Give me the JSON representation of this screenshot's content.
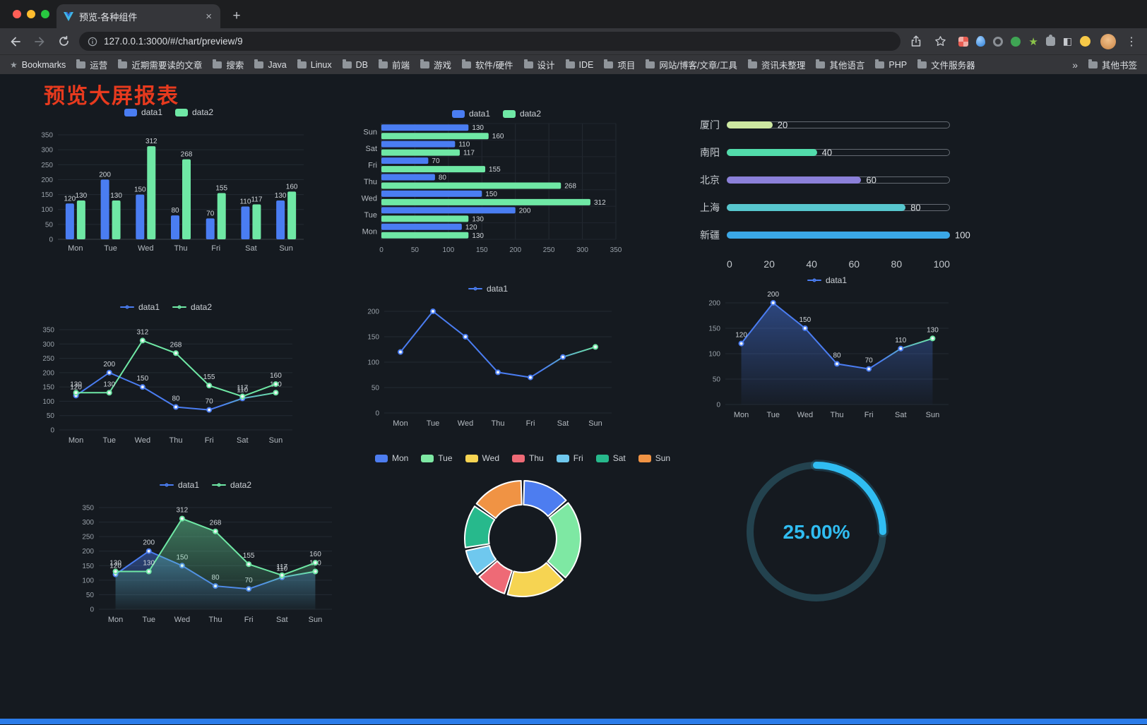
{
  "browser": {
    "tab_title": "预览-各种组件",
    "url": "127.0.0.1:3000/#/chart/preview/9",
    "bookmarks": [
      {
        "label": "Bookmarks",
        "icon": "star"
      },
      {
        "label": "运营",
        "icon": "folder"
      },
      {
        "label": "近期需要读的文章",
        "icon": "folder"
      },
      {
        "label": "搜索",
        "icon": "folder"
      },
      {
        "label": "Java",
        "icon": "folder"
      },
      {
        "label": "Linux",
        "icon": "folder"
      },
      {
        "label": "DB",
        "icon": "folder"
      },
      {
        "label": "前端",
        "icon": "folder"
      },
      {
        "label": "游戏",
        "icon": "folder"
      },
      {
        "label": "软件/硬件",
        "icon": "folder"
      },
      {
        "label": "设计",
        "icon": "folder"
      },
      {
        "label": "IDE",
        "icon": "folder"
      },
      {
        "label": "项目",
        "icon": "folder"
      },
      {
        "label": "网站/博客/文章/工具",
        "icon": "folder"
      },
      {
        "label": "资讯未整理",
        "icon": "folder"
      },
      {
        "label": "其他语言",
        "icon": "folder"
      },
      {
        "label": "PHP",
        "icon": "folder"
      },
      {
        "label": "文件服务器",
        "icon": "folder"
      },
      {
        "label": "»",
        "icon": "chevron"
      },
      {
        "label": "其他书签",
        "icon": "folder"
      }
    ]
  },
  "page": {
    "title": "预览大屏报表",
    "title_color": "#e73a1e",
    "background": "#151a20",
    "accent_blue": "#4a7df2",
    "accent_green": "#6fe8a5",
    "footer_bar_color": "#2b7ce9"
  },
  "chart_data": [
    {
      "id": "bar-grouped",
      "type": "bar",
      "legend_type": "rect",
      "categories": [
        "Mon",
        "Tue",
        "Wed",
        "Thu",
        "Fri",
        "Sat",
        "Sun"
      ],
      "series": [
        {
          "name": "data1",
          "color": "#4a7df2",
          "values": [
            120,
            200,
            150,
            80,
            70,
            110,
            130
          ]
        },
        {
          "name": "data2",
          "color": "#6fe8a5",
          "values": [
            130,
            130,
            312,
            268,
            155,
            117,
            160
          ]
        }
      ],
      "ylim": [
        0,
        350
      ],
      "ytick": 50,
      "show_labels": true
    },
    {
      "id": "bar-horizontal",
      "type": "hbar",
      "legend_type": "rect",
      "categories": [
        "Sun",
        "Sat",
        "Fri",
        "Thu",
        "Wed",
        "Tue",
        "Mon"
      ],
      "series": [
        {
          "name": "data1",
          "color": "#4a7df2",
          "values": [
            130,
            110,
            70,
            80,
            150,
            200,
            120
          ]
        },
        {
          "name": "data2",
          "color": "#6fe8a5",
          "values": [
            160,
            117,
            155,
            268,
            312,
            130,
            130
          ]
        }
      ],
      "xlim": [
        0,
        350
      ],
      "xtick": 50,
      "show_labels": true
    },
    {
      "id": "progress-bars",
      "type": "progress",
      "max": 100,
      "rows": [
        {
          "label": "厦门",
          "value": 20,
          "color": "#cde8a1"
        },
        {
          "label": "南阳",
          "value": 40,
          "color": "#52dcab"
        },
        {
          "label": "北京",
          "value": 60,
          "color": "#8b80d9"
        },
        {
          "label": "上海",
          "value": 80,
          "color": "#57c7ce"
        },
        {
          "label": "新疆",
          "value": 100,
          "color": "#3aa7e6"
        }
      ],
      "axis": [
        0,
        20,
        40,
        60,
        80,
        100
      ]
    },
    {
      "id": "line-two",
      "type": "line",
      "legend_type": "line",
      "categories": [
        "Mon",
        "Tue",
        "Wed",
        "Thu",
        "Fri",
        "Sat",
        "Sun"
      ],
      "series": [
        {
          "name": "data1",
          "color": "#4a7df2",
          "color2": "#6fe8a5",
          "gradient": true,
          "area": false,
          "values": [
            120,
            200,
            150,
            80,
            70,
            110,
            130
          ]
        },
        {
          "name": "data2",
          "color": "#6fe8a5",
          "area": false,
          "values": [
            130,
            130,
            312,
            268,
            155,
            117,
            160
          ]
        }
      ],
      "ylim": [
        0,
        350
      ],
      "ytick": 50,
      "show_labels": true
    },
    {
      "id": "line-gradient",
      "type": "line",
      "legend_type": "line",
      "categories": [
        "Mon",
        "Tue",
        "Wed",
        "Thu",
        "Fri",
        "Sat",
        "Sun"
      ],
      "series": [
        {
          "name": "data1",
          "color": "#4a7df2",
          "color2": "#6fe8a5",
          "gradient": true,
          "area": false,
          "values": [
            120,
            200,
            150,
            80,
            70,
            110,
            130
          ]
        }
      ],
      "ylim": [
        0,
        200
      ],
      "ytick": 50,
      "show_labels": false
    },
    {
      "id": "line-area",
      "type": "line",
      "legend_type": "line",
      "categories": [
        "Mon",
        "Tue",
        "Wed",
        "Thu",
        "Fri",
        "Sat",
        "Sun"
      ],
      "series": [
        {
          "name": "data1",
          "color": "#4a7df2",
          "color2": "#6fe8a5",
          "gradient": true,
          "area": true,
          "values": [
            120,
            200,
            150,
            80,
            70,
            110,
            130
          ]
        }
      ],
      "ylim": [
        0,
        200
      ],
      "ytick": 50,
      "show_labels": true
    },
    {
      "id": "line-two-area",
      "type": "line",
      "legend_type": "line",
      "categories": [
        "Mon",
        "Tue",
        "Wed",
        "Thu",
        "Fri",
        "Sat",
        "Sun"
      ],
      "series": [
        {
          "name": "data1",
          "color": "#4a7df2",
          "color2": "#6fe8a5",
          "gradient": true,
          "area": true,
          "values": [
            120,
            200,
            150,
            80,
            70,
            110,
            130
          ]
        },
        {
          "name": "data2",
          "color": "#6fe8a5",
          "area": true,
          "values": [
            130,
            130,
            312,
            268,
            155,
            117,
            160
          ]
        }
      ],
      "ylim": [
        0,
        350
      ],
      "ytick": 50,
      "show_labels": true
    },
    {
      "id": "donut",
      "type": "pie",
      "legend_type": "rect",
      "items": [
        {
          "label": "Mon",
          "value": 120,
          "color": "#4d7df0"
        },
        {
          "label": "Tue",
          "value": 200,
          "color": "#7ee8a3"
        },
        {
          "label": "Wed",
          "value": 150,
          "color": "#f6d452"
        },
        {
          "label": "Thu",
          "value": 80,
          "color": "#ee6a76"
        },
        {
          "label": "Fri",
          "value": 70,
          "color": "#6fc8ee"
        },
        {
          "label": "Sat",
          "value": 110,
          "color": "#27b98c"
        },
        {
          "label": "Sun",
          "value": 130,
          "color": "#f09344"
        }
      ]
    },
    {
      "id": "gauge",
      "type": "gauge",
      "value": 25,
      "text": "25.00%",
      "color": "#30bdf2",
      "track_color": "#23424e"
    }
  ]
}
